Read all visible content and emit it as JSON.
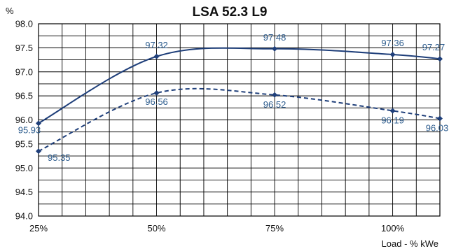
{
  "chart_data": {
    "type": "line",
    "title": "LSA 52.3 L9",
    "ylabel": "%",
    "xlabel": "Load - % kWe",
    "xlim": [
      25,
      110
    ],
    "ylim": [
      94.0,
      98.0
    ],
    "x_ticks": [
      {
        "value": 25,
        "label": "25%"
      },
      {
        "value": 50,
        "label": "50%"
      },
      {
        "value": 75,
        "label": "75%"
      },
      {
        "value": 100,
        "label": "100%"
      }
    ],
    "y_ticks": [
      {
        "value": 98.0,
        "label": "98.0"
      },
      {
        "value": 97.5,
        "label": "97.5"
      },
      {
        "value": 97.0,
        "label": "97.0"
      },
      {
        "value": 96.5,
        "label": "96.5"
      },
      {
        "value": 96.0,
        "label": "96.0"
      },
      {
        "value": 95.5,
        "label": "95.5"
      },
      {
        "value": 95.0,
        "label": "95.0"
      },
      {
        "value": 94.5,
        "label": "94.5"
      },
      {
        "value": 94.0,
        "label": "94.0"
      }
    ],
    "grid": true,
    "series": [
      {
        "style": "solid",
        "color": "#1f3f7a",
        "points": [
          {
            "x": 25,
            "y": 95.93,
            "label": "95.93"
          },
          {
            "x": 50,
            "y": 97.32,
            "label": "97.32"
          },
          {
            "x": 75,
            "y": 97.48,
            "label": "97.48"
          },
          {
            "x": 100,
            "y": 97.36,
            "label": "97.36"
          },
          {
            "x": 110,
            "y": 97.27,
            "label": "97.27"
          }
        ]
      },
      {
        "style": "dashed",
        "color": "#1f3f7a",
        "points": [
          {
            "x": 25,
            "y": 95.35,
            "label": "95.35"
          },
          {
            "x": 50,
            "y": 96.56,
            "label": "96.56"
          },
          {
            "x": 75,
            "y": 96.52,
            "label": "96.52"
          },
          {
            "x": 100,
            "y": 96.19,
            "label": "96.19"
          },
          {
            "x": 110,
            "y": 96.03,
            "label": "96.03"
          }
        ]
      }
    ],
    "label_color": "#2e5d8e"
  }
}
